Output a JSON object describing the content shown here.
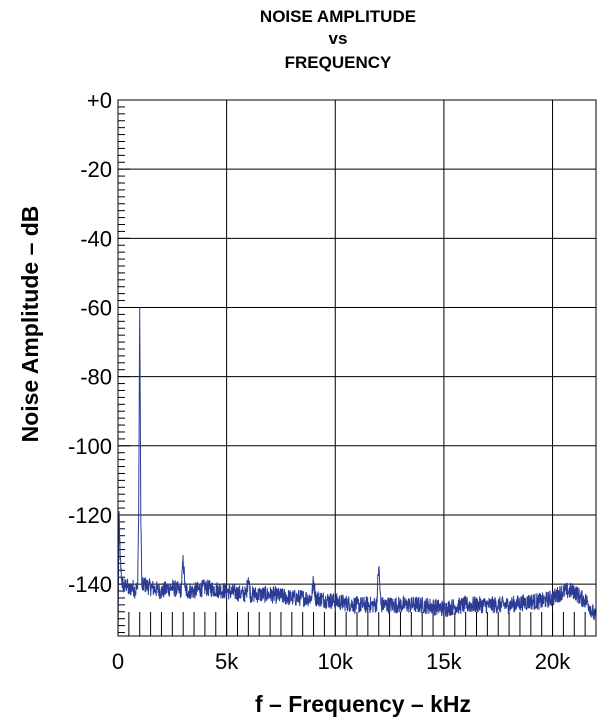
{
  "chart_data": {
    "type": "line",
    "title_lines": [
      "NOISE AMPLITUDE",
      "vs",
      "FREQUENCY"
    ],
    "xlabel": "f – Frequency – kHz",
    "ylabel": "Noise Amplitude – dB",
    "xlim": [
      0,
      22
    ],
    "ylim": [
      -155,
      0
    ],
    "x_ticks": [
      0,
      5,
      10,
      15,
      20
    ],
    "x_tick_labels": [
      "0",
      "5k",
      "10k",
      "15k",
      "20k"
    ],
    "y_ticks": [
      0,
      -20,
      -40,
      -60,
      -80,
      -100,
      -120,
      -140
    ],
    "y_tick_labels": [
      "+0",
      "-20",
      "-40",
      "-60",
      "-80",
      "-100",
      "-120",
      "-140"
    ],
    "grid": true,
    "line_color": "#2b3c94",
    "series": [
      {
        "x": [
          0.0,
          0.05,
          0.1,
          0.15,
          0.2,
          0.3,
          0.4,
          0.5,
          0.6,
          0.7,
          0.8,
          0.9,
          0.95,
          1.0,
          1.05,
          1.1,
          1.2,
          1.5,
          2.0,
          2.5,
          2.9,
          3.0,
          3.1,
          3.5,
          4.0,
          5.0,
          5.9,
          6.0,
          6.1,
          7.0,
          8.0,
          8.9,
          9.0,
          9.1,
          10.0,
          11.0,
          11.9,
          12.0,
          12.1,
          13.0,
          14.0,
          15.0,
          16.0,
          17.0,
          18.0,
          19.0,
          19.5,
          20.0,
          20.5,
          21.0,
          21.3,
          21.6,
          22.0
        ],
        "y": [
          -155,
          -119,
          -133,
          -137,
          -140,
          -141,
          -140,
          -142,
          -141,
          -141,
          -142,
          -141,
          -120,
          -60,
          -120,
          -141,
          -140,
          -141,
          -142,
          -141,
          -142,
          -133,
          -142,
          -142,
          -141,
          -142,
          -143,
          -138,
          -143,
          -143,
          -144,
          -144,
          -139,
          -144,
          -145,
          -146,
          -146,
          -135,
          -146,
          -146,
          -146,
          -147,
          -146,
          -146,
          -146,
          -145,
          -145,
          -144,
          -142,
          -142,
          -144,
          -145,
          -150
        ]
      }
    ]
  }
}
